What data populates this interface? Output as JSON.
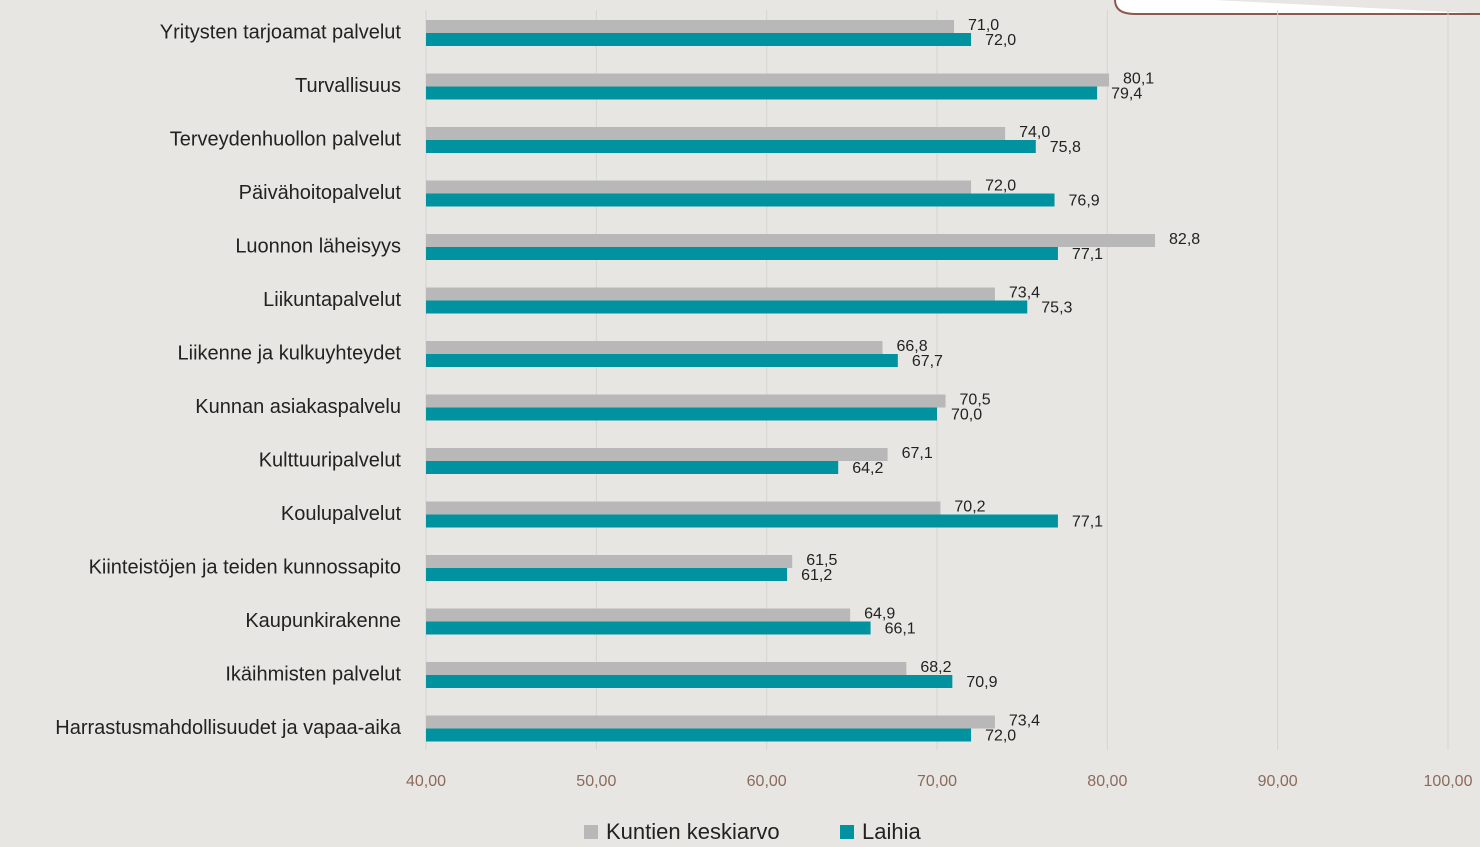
{
  "chart_data": {
    "type": "bar",
    "orientation": "horizontal",
    "categories": [
      "Yritysten tarjoamat palvelut",
      "Turvallisuus",
      "Terveydenhuollon palvelut",
      "Päivähoitopalvelut",
      "Luonnon läheisyys",
      "Liikuntapalvelut",
      "Liikenne ja kulkuyhteydet",
      "Kunnan asiakaspalvelu",
      "Kulttuuripalvelut",
      "Koulupalvelut",
      "Kiinteistöjen ja teiden kunnossapito",
      "Kaupunkirakenne",
      "Ikäihmisten palvelut",
      "Harrastusmahdollisuudet ja vapaa-aika"
    ],
    "series": [
      {
        "name": "Kuntien keskiarvo",
        "color": "#b8b8b8",
        "values": [
          71.0,
          80.1,
          74.0,
          72.0,
          82.8,
          73.4,
          66.8,
          70.5,
          67.1,
          70.2,
          61.5,
          64.9,
          68.2,
          73.4
        ],
        "value_labels": [
          "71,0",
          "80,1",
          "74,0",
          "72,0",
          "82,8",
          "73,4",
          "66,8",
          "70,5",
          "67,1",
          "70,2",
          "61,5",
          "64,9",
          "68,2",
          "73,4"
        ]
      },
      {
        "name": "Laihia",
        "color": "#00939f",
        "values": [
          72.0,
          79.4,
          75.8,
          76.9,
          77.1,
          75.3,
          67.7,
          70.0,
          64.2,
          77.1,
          61.2,
          66.1,
          70.9,
          72.0
        ],
        "value_labels": [
          "72,0",
          "79,4",
          "75,8",
          "76,9",
          "77,1",
          "75,3",
          "67,7",
          "70,0",
          "64,2",
          "77,1",
          "61,2",
          "66,1",
          "70,9",
          "72,0"
        ]
      }
    ],
    "xlim": [
      40,
      100
    ],
    "xticks": [
      {
        "value": 40,
        "label": "40,00"
      },
      {
        "value": 50,
        "label": "50,00"
      },
      {
        "value": 60,
        "label": "60,00"
      },
      {
        "value": 70,
        "label": "70,00"
      },
      {
        "value": 80,
        "label": "80,00"
      },
      {
        "value": 90,
        "label": "90,00"
      },
      {
        "value": 100,
        "label": "100,00"
      }
    ],
    "grid": true,
    "legend": "bottom"
  }
}
